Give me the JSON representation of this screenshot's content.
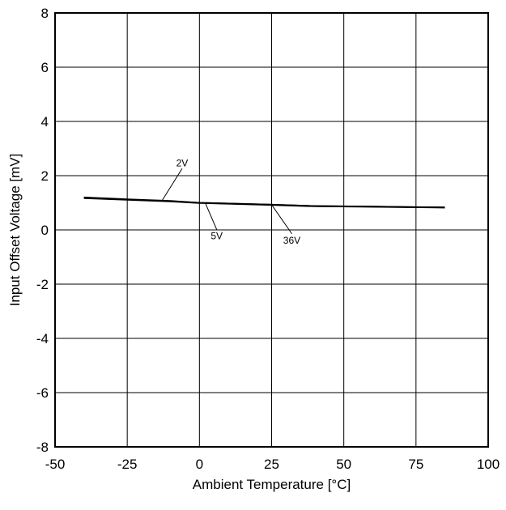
{
  "chart_data": {
    "type": "line",
    "title": "",
    "xlabel": "Ambient Temperature [°C]",
    "ylabel": "Input Offset Voltage [mV]",
    "xlim": [
      -50,
      100
    ],
    "ylim": [
      -8,
      8
    ],
    "xticks": [
      -50,
      -25,
      0,
      25,
      50,
      75,
      100
    ],
    "yticks": [
      -8,
      -6,
      -4,
      -2,
      0,
      2,
      4,
      6,
      8
    ],
    "x_tick_labels": [
      "-50",
      "-25",
      "0",
      "25",
      "50",
      "75",
      "100"
    ],
    "y_tick_labels": [
      "-8",
      "-6",
      "-4",
      "-2",
      "0",
      "2",
      "4",
      "6",
      "8"
    ],
    "grid": true,
    "legend": "none",
    "series": [
      {
        "name": "2V",
        "color": "#000000",
        "x": [
          -40,
          -25,
          -10,
          0,
          25,
          40,
          60,
          85
        ],
        "y": [
          1.2,
          1.13,
          1.07,
          1.0,
          0.93,
          0.88,
          0.86,
          0.83
        ]
      },
      {
        "name": "5V",
        "color": "#000000",
        "x": [
          -40,
          -25,
          -10,
          0,
          25,
          40,
          60,
          85
        ],
        "y": [
          1.18,
          1.12,
          1.06,
          1.0,
          0.93,
          0.88,
          0.86,
          0.83
        ]
      },
      {
        "name": "36V",
        "color": "#000000",
        "x": [
          -40,
          -25,
          -10,
          0,
          25,
          40,
          60,
          85
        ],
        "y": [
          1.17,
          1.11,
          1.05,
          0.99,
          0.92,
          0.87,
          0.85,
          0.82
        ]
      }
    ],
    "annotations": [
      {
        "label": "2V",
        "point_x": -13,
        "point_y": 1.07,
        "text_x": -6,
        "text_y": 2.35
      },
      {
        "label": "5V",
        "point_x": 2,
        "point_y": 1.0,
        "text_x": 6,
        "text_y": -0.35
      },
      {
        "label": "36V",
        "point_x": 25,
        "point_y": 0.93,
        "text_x": 32,
        "text_y": -0.5
      }
    ]
  }
}
